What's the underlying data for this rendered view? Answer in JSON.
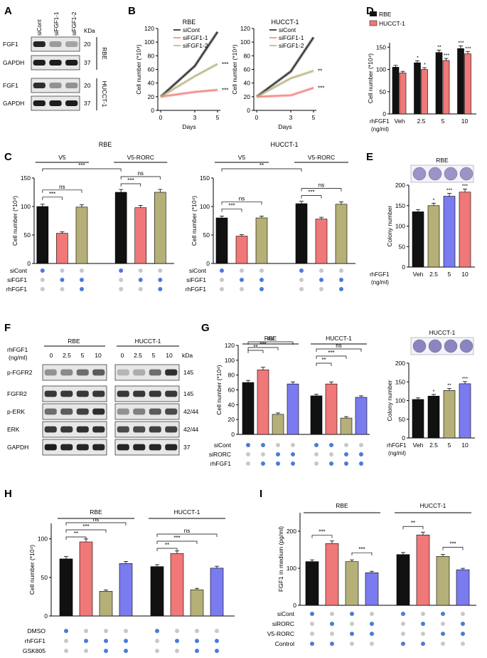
{
  "colors": {
    "black": "#111111",
    "red": "#f07878",
    "olive": "#b4b078",
    "blue": "#7b7bf0",
    "dot_on": "#4a7bd8",
    "dot_off": "#c8c8c8"
  },
  "panels": {
    "A": "A",
    "B": "B",
    "C": "C",
    "D": "D",
    "E": "E",
    "F": "F",
    "G": "G",
    "H": "H",
    "I": "I"
  },
  "panelA": {
    "lanes": [
      "siCont",
      "siFGF1-1",
      "siFGF1-2"
    ],
    "kda": "KDa",
    "rows": [
      {
        "label": "FGF1",
        "kda": "20"
      },
      {
        "label": "GAPDH",
        "kda": "37"
      },
      {
        "label": "FGF1",
        "kda": "20"
      },
      {
        "label": "GAPDH",
        "kda": "37"
      }
    ],
    "cells": [
      "RBE",
      "HUCCT-1"
    ]
  },
  "panelB": {
    "ylabel": "Cell number (*10⁴)",
    "xlabel": "Days",
    "legend": [
      "siCont",
      "siFGF1-1",
      "siFGF1-2"
    ],
    "yticks": [
      "0",
      "20",
      "40",
      "60",
      "80",
      "100",
      "120"
    ],
    "xticks": [
      "0",
      "3",
      "5"
    ],
    "charts": [
      {
        "title": "RBE",
        "x": [
          0,
          3,
          5
        ],
        "series": [
          {
            "name": "siCont",
            "values": [
              20,
              65,
              115
            ]
          },
          {
            "name": "siFGF1-1",
            "values": [
              20,
              27,
              30
            ]
          },
          {
            "name": "siFGF1-2",
            "values": [
              20,
              50,
              68
            ]
          }
        ],
        "sig": [
          "***",
          "***"
        ]
      },
      {
        "title": "HUCCT-1",
        "x": [
          0,
          3,
          5
        ],
        "series": [
          {
            "name": "siCont",
            "values": [
              20,
              57,
              107
            ]
          },
          {
            "name": "siFGF1-1",
            "values": [
              20,
              22,
              33
            ]
          },
          {
            "name": "siFGF1-2",
            "values": [
              20,
              47,
              58
            ]
          }
        ],
        "sig": [
          "**",
          "***"
        ]
      }
    ]
  },
  "panelD": {
    "legend": [
      "RBE",
      "HUCCT-1"
    ],
    "ylabel": "Cell number (*10⁴)",
    "xlabel": "rhFGF1\n(ng/ml)",
    "categories": [
      "Veh",
      "2.5",
      "5",
      "10"
    ],
    "yticks": [
      "0",
      "50",
      "100",
      "150"
    ],
    "series": [
      {
        "name": "RBE",
        "values": [
          105,
          115,
          138,
          147
        ]
      },
      {
        "name": "HUCCT-1",
        "values": [
          92,
          100,
          120,
          135
        ]
      }
    ],
    "sig_rbe": [
      "",
      "*",
      "**",
      "***"
    ],
    "sig_huc": [
      "",
      "*",
      "***",
      "***"
    ]
  },
  "panelC": {
    "ylabel": "Cell number (*10⁴)",
    "row_labels": [
      "siCont",
      "siFGF1",
      "rhFGF1"
    ],
    "charts": [
      {
        "title": "RBE",
        "groups": [
          "V5",
          "V5-RORC"
        ],
        "values": [
          100,
          53,
          99,
          125,
          98,
          125
        ],
        "yticks": [
          "0",
          "50",
          "100",
          "150"
        ],
        "ymax": 150,
        "sig": [
          "***",
          "***",
          "ns",
          "***",
          "ns"
        ]
      },
      {
        "title": "HUCCT-1",
        "groups": [
          "V5",
          "V5-RORC"
        ],
        "values": [
          80,
          48,
          80,
          105,
          78,
          104
        ],
        "yticks": [
          "0",
          "50",
          "100",
          "150"
        ],
        "ymax": 150,
        "sig": [
          "**",
          "***",
          "ns",
          "***",
          "ns"
        ]
      }
    ],
    "dots": [
      [
        1,
        0,
        0,
        1,
        0,
        0
      ],
      [
        0,
        1,
        1,
        0,
        1,
        1
      ],
      [
        0,
        0,
        1,
        0,
        0,
        1
      ]
    ]
  },
  "panelE": {
    "title": "RBE",
    "ylabel": "Colony number",
    "xlabel": "rhFGF1\n(ng/ml)",
    "categories": [
      "Veh",
      "2.5",
      "5",
      "10"
    ],
    "values": [
      135,
      150,
      173,
      183
    ],
    "yticks": [
      "0",
      "50",
      "100",
      "150",
      "200"
    ],
    "sig": [
      "",
      "*",
      "***",
      "***"
    ]
  },
  "panelF": {
    "treat_label": "rhFGF1\n(ng/ml)",
    "cells": [
      "RBE",
      "HUCCT-1"
    ],
    "doses": [
      "0",
      "2.5",
      "5",
      "10"
    ],
    "kda": "kDa",
    "rows": [
      {
        "label": "p-FGFR2",
        "kda": "145"
      },
      {
        "label": "FGFR2",
        "kda": "145"
      },
      {
        "label": "p-ERK",
        "kda": "42/44"
      },
      {
        "label": "ERK",
        "kda": "42/44"
      },
      {
        "label": "GAPDH",
        "kda": "37"
      }
    ]
  },
  "panelG": {
    "ylabel": "Cell number (*10⁴)",
    "cells": [
      "RBE",
      "HUCCT-1"
    ],
    "yticks": [
      "0",
      "20",
      "40",
      "60",
      "80",
      "100",
      "120"
    ],
    "values": [
      70,
      87,
      27,
      68,
      52,
      68,
      22,
      50
    ],
    "row_labels": [
      "siCont",
      "siRORC",
      "rhFGF1"
    ],
    "dots": [
      [
        1,
        1,
        0,
        0,
        1,
        1,
        0,
        0
      ],
      [
        0,
        0,
        1,
        1,
        0,
        0,
        1,
        1
      ],
      [
        0,
        1,
        1,
        1,
        0,
        1,
        1,
        1
      ]
    ],
    "sig": [
      "**",
      "***",
      "ns",
      "**",
      "***",
      "ns"
    ]
  },
  "panelG2": {
    "title": "HUCCT-1",
    "ylabel": "Colony number",
    "xlabel": "rhFGF1\n(ng/ml)",
    "categories": [
      "Veh",
      "2.5",
      "5",
      "10"
    ],
    "values": [
      103,
      112,
      127,
      145
    ],
    "yticks": [
      "0",
      "50",
      "100",
      "150",
      "200"
    ],
    "sig": [
      "",
      "*",
      "**",
      "***"
    ]
  },
  "panelH": {
    "ylabel": "Cell number (*10⁴)",
    "cells": [
      "RBE",
      "HUCCT-1"
    ],
    "yticks": [
      "0",
      "50",
      "100"
    ],
    "values": [
      74,
      96,
      32,
      68,
      64,
      81,
      34,
      62
    ],
    "row_labels": [
      "DMSO",
      "rhFGF1",
      "GSK805"
    ],
    "dots": [
      [
        1,
        0,
        0,
        0,
        1,
        0,
        0,
        0
      ],
      [
        0,
        1,
        1,
        1,
        0,
        1,
        1,
        1
      ],
      [
        0,
        0,
        1,
        1,
        0,
        0,
        1,
        1
      ]
    ],
    "sig": [
      "**",
      "***",
      "ns",
      "**",
      "***",
      "ns"
    ]
  },
  "panelI": {
    "ylabel": "FGF1 in medium (pg/ml)",
    "cells": [
      "RBE",
      "HUCCT-1"
    ],
    "yticks": [
      "0",
      "100",
      "200"
    ],
    "values": [
      118,
      167,
      118,
      88,
      137,
      190,
      132,
      96
    ],
    "row_labels": [
      "siCont",
      "siRORC",
      "V5-RORC",
      "Control"
    ],
    "dots": [
      [
        1,
        0,
        1,
        0,
        1,
        0,
        1,
        0
      ],
      [
        0,
        1,
        0,
        1,
        0,
        1,
        0,
        1
      ],
      [
        0,
        0,
        1,
        1,
        0,
        0,
        1,
        1
      ],
      [
        1,
        1,
        0,
        0,
        1,
        1,
        0,
        0
      ]
    ],
    "sig": [
      "***",
      "***",
      "**",
      "***"
    ]
  }
}
